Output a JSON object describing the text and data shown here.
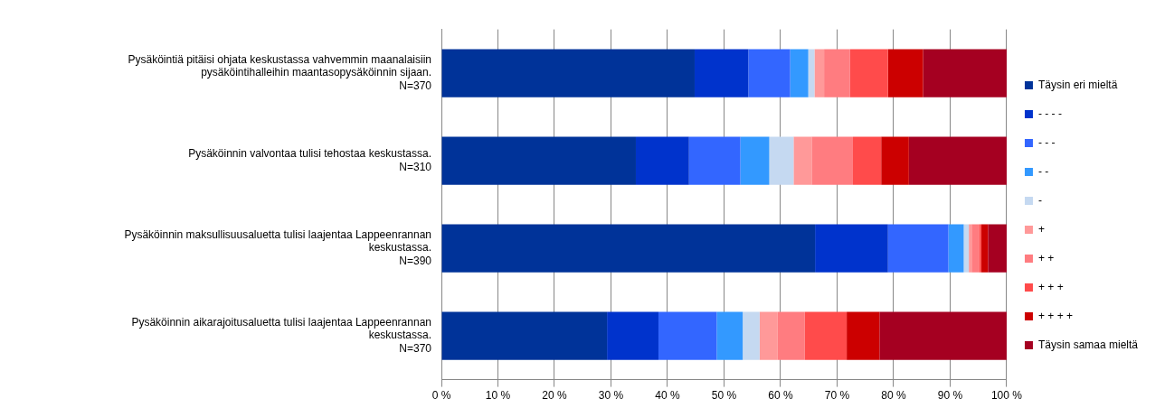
{
  "chart_data": {
    "type": "bar",
    "orientation": "horizontal",
    "stacked": true,
    "categories": [
      "Pysäköintiä pitäisi ohjata keskustassa vahvemmin maanalaisiin\npysäköintihalleihin maantasopysäköinnin sijaan.\nN=370",
      "Pysäköinnin valvontaa tulisi tehostaa keskustassa.\nN=310",
      "Pysäköinnin maksullisuusaluetta tulisi laajentaa Lappeenrannan\nkeskustassa.\nN=390",
      "Pysäköinnin aikarajoitusaluetta tulisi laajentaa Lappeenrannan\nkeskustassa.\nN=370"
    ],
    "series": [
      {
        "name": "Täysin eri mieltä",
        "color": "#003399",
        "values": [
          44.8,
          34.4,
          66.1,
          29.3
        ]
      },
      {
        "name": "- - - -",
        "color": "#0033cc",
        "values": [
          9.5,
          9.4,
          12.9,
          9.1
        ]
      },
      {
        "name": "- - -",
        "color": "#3366ff",
        "values": [
          7.4,
          9.1,
          10.7,
          10.3
        ]
      },
      {
        "name": "- -",
        "color": "#3399ff",
        "values": [
          3.2,
          5.1,
          2.7,
          4.6
        ]
      },
      {
        "name": "-",
        "color": "#c5d9f1",
        "values": [
          1.1,
          4.3,
          0.9,
          3.0
        ]
      },
      {
        "name": "+",
        "color": "#ff9999",
        "values": [
          1.7,
          3.2,
          0.5,
          3.2
        ]
      },
      {
        "name": "+ +",
        "color": "#ff7c80",
        "values": [
          4.6,
          7.3,
          1.3,
          4.8
        ]
      },
      {
        "name": "+ + +",
        "color": "#ff4b4b",
        "values": [
          6.7,
          5.0,
          0.4,
          7.4
        ]
      },
      {
        "name": "+ + + +",
        "color": "#cc0000",
        "values": [
          6.2,
          4.9,
          1.2,
          5.8
        ]
      },
      {
        "name": "Täysin samaa mieltä",
        "color": "#a50021",
        "values": [
          14.8,
          17.3,
          3.3,
          22.5
        ]
      }
    ],
    "xlim": [
      0,
      100
    ],
    "xticks": [
      {
        "value": 0,
        "label": "0 %"
      },
      {
        "value": 10,
        "label": "10 %"
      },
      {
        "value": 20,
        "label": "20 %"
      },
      {
        "value": 30,
        "label": "30 %"
      },
      {
        "value": 40,
        "label": "40 %"
      },
      {
        "value": 50,
        "label": "50 %"
      },
      {
        "value": 60,
        "label": "60 %"
      },
      {
        "value": 70,
        "label": "70 %"
      },
      {
        "value": 80,
        "label": "80 %"
      },
      {
        "value": 90,
        "label": "90 %"
      },
      {
        "value": 100,
        "label": "100 %"
      }
    ],
    "grid": "x",
    "legend": "right"
  }
}
